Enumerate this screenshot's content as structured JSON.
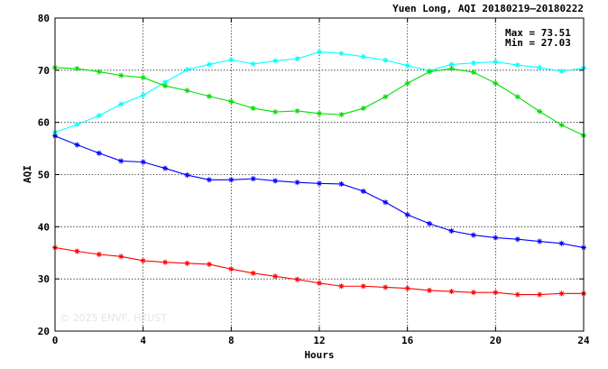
{
  "chart_data": {
    "type": "line",
    "title": "Yuen Long, AQI 20180219–20180222",
    "xlabel": "Hours",
    "ylabel": "AQI",
    "xlim": [
      0,
      24
    ],
    "ylim": [
      20,
      80
    ],
    "xticks": [
      0,
      4,
      8,
      12,
      16,
      20,
      24
    ],
    "yticks": [
      20,
      30,
      40,
      50,
      60,
      70,
      80
    ],
    "grid": true,
    "stats": {
      "max": "Max = 73.51",
      "min": "Min = 27.03"
    },
    "watermark": "© 2025  ENVF, HKUST",
    "x": [
      0,
      1,
      2,
      3,
      4,
      5,
      6,
      7,
      8,
      9,
      10,
      11,
      12,
      13,
      14,
      15,
      16,
      17,
      18,
      19,
      20,
      21,
      22,
      23,
      24
    ],
    "series": [
      {
        "color": "#00ffff",
        "values": [
          58.1,
          59.6,
          61.3,
          63.5,
          65.2,
          67.7,
          70.1,
          71.1,
          72.0,
          71.2,
          71.8,
          72.2,
          73.5,
          73.2,
          72.6,
          71.9,
          70.9,
          69.9,
          71.1,
          71.4,
          71.6,
          71.0,
          70.5,
          69.8,
          70.4
        ]
      },
      {
        "color": "#00e000",
        "values": [
          70.5,
          70.3,
          69.7,
          69.0,
          68.6,
          67.0,
          66.1,
          65.0,
          64.0,
          62.7,
          62.0,
          62.2,
          61.7,
          61.5,
          62.7,
          64.9,
          67.5,
          69.7,
          70.3,
          69.6,
          67.5,
          64.9,
          62.1,
          59.5,
          57.5
        ]
      },
      {
        "color": "#0000ff",
        "values": [
          57.4,
          55.7,
          54.1,
          52.6,
          52.4,
          51.2,
          49.9,
          49.0,
          49.0,
          49.2,
          48.8,
          48.5,
          48.3,
          48.2,
          46.8,
          44.7,
          42.3,
          40.6,
          39.2,
          38.4,
          37.9,
          37.6,
          37.2,
          36.8,
          36.0
        ]
      },
      {
        "color": "#ff0000",
        "values": [
          36.0,
          35.3,
          34.7,
          34.3,
          33.5,
          33.2,
          33.0,
          32.8,
          31.9,
          31.1,
          30.5,
          29.9,
          29.2,
          28.6,
          28.6,
          28.4,
          28.2,
          27.8,
          27.6,
          27.4,
          27.4,
          27.0,
          27.0,
          27.2,
          27.2
        ]
      }
    ]
  }
}
